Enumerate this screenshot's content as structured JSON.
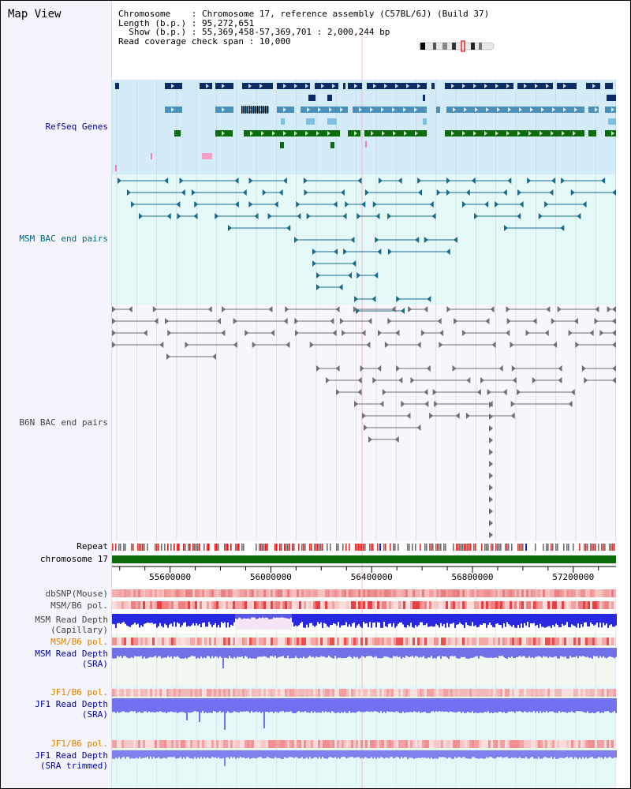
{
  "header": {
    "title": "Map View",
    "chromosome_label": "Chromosome",
    "chromosome_value": "Chromosome 17, reference assembly (C57BL/6J) (Build 37)",
    "length_label": "Length (b.p.)",
    "length_value": "95,272,651",
    "show_label": "Show (b.p.)",
    "show_value": "55,369,458-57,369,701 : 2,000,244 bp",
    "coverage_label": "Read coverage check span",
    "coverage_value": "10,000"
  },
  "tracks": {
    "refseq": "RefSeq Genes",
    "msm_bac": "MSM BAC end pairs",
    "b6n_bac": "B6N BAC end pairs",
    "repeat": "Repeat",
    "chromosome": "chromosome 17",
    "dbsnp": "dbSNP(Mouse)",
    "msm_b6_pol_1": "MSM/B6 pol.",
    "msm_depth_cap_1": "MSM Read Depth",
    "msm_depth_cap_2": "(Capillary)",
    "msm_b6_pol_2": "MSM/B6 pol.",
    "msm_depth_sra_1": "MSM Read Depth",
    "msm_depth_sra_2": "(SRA)",
    "jf1_b6_pol_1": "JF1/B6 pol.",
    "jf1_depth_sra_1": "JF1 Read Depth",
    "jf1_depth_sra_2": "(SRA)",
    "jf1_b6_pol_2": "JF1/B6 pol.",
    "jf1_depth_trim_1": "JF1 Read Depth",
    "jf1_depth_trim_2": "(SRA trimmed)"
  },
  "axis": {
    "ticks": [
      {
        "label": "55600000",
        "value": 55600000
      },
      {
        "label": "56000000",
        "value": 56000000
      },
      {
        "label": "56400000",
        "value": 56400000
      },
      {
        "label": "56800000",
        "value": 56800000
      },
      {
        "label": "57200000",
        "value": 57200000
      }
    ],
    "start": 55369458,
    "end": 57369701
  },
  "colors": {
    "refseq_bg": "#d4ecf8",
    "msm_bg": "#e4f8f8",
    "b6n_bg": "#f6f6fc",
    "gene_dark": "#0c2c64",
    "gene_mid": "#4a90b8",
    "gene_light": "#80c0e0",
    "gene_green": "#0c6c0c",
    "msm_pair": "#1a6a8a",
    "b6n_pair": "#707070",
    "label_blue": "#0000aa",
    "label_teal": "#006880",
    "label_gray": "#444444",
    "label_orange": "#e08000"
  }
}
